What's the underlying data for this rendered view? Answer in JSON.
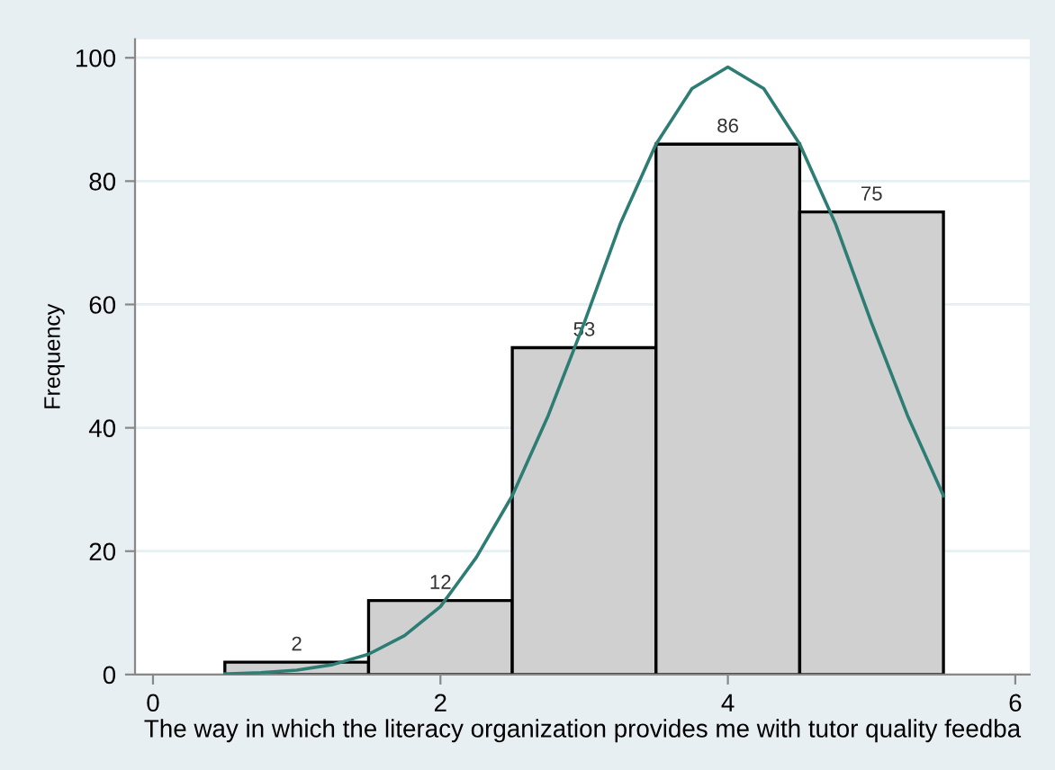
{
  "chart_data": {
    "type": "histogram",
    "xlabel": "The way in which the literacy organization provides me with tutor quality feedba",
    "ylabel": "Frequency",
    "bins": [
      0.5,
      1.5,
      2.5,
      3.5,
      4.5,
      5.5
    ],
    "values": [
      2,
      12,
      53,
      86,
      75
    ],
    "color": "#d0d0d0",
    "value_labels": [
      "2",
      "12",
      "53",
      "86",
      "75"
    ],
    "series": [
      {
        "type": "line",
        "color": "#2e7d74",
        "x": [
          0.5,
          0.75,
          1.0,
          1.25,
          1.5,
          1.75,
          2.0,
          2.25,
          2.5,
          2.75,
          3.0,
          3.25,
          3.5,
          3.75,
          4.0,
          4.25,
          4.5,
          4.75,
          5.0,
          5.25,
          5.5
        ],
        "values": [
          0.1,
          0.3,
          0.7,
          1.6,
          3.3,
          6.3,
          11,
          19,
          29,
          42,
          57,
          73,
          86,
          95,
          98.5,
          95,
          86,
          73,
          57,
          42,
          29
        ]
      }
    ],
    "xlim": [
      -0.125,
      6.1
    ],
    "ylim": [
      0,
      103
    ],
    "xticks": [
      0,
      2,
      4,
      6
    ],
    "yticks": [
      0,
      20,
      40,
      60,
      80,
      100
    ],
    "grid": "y"
  }
}
